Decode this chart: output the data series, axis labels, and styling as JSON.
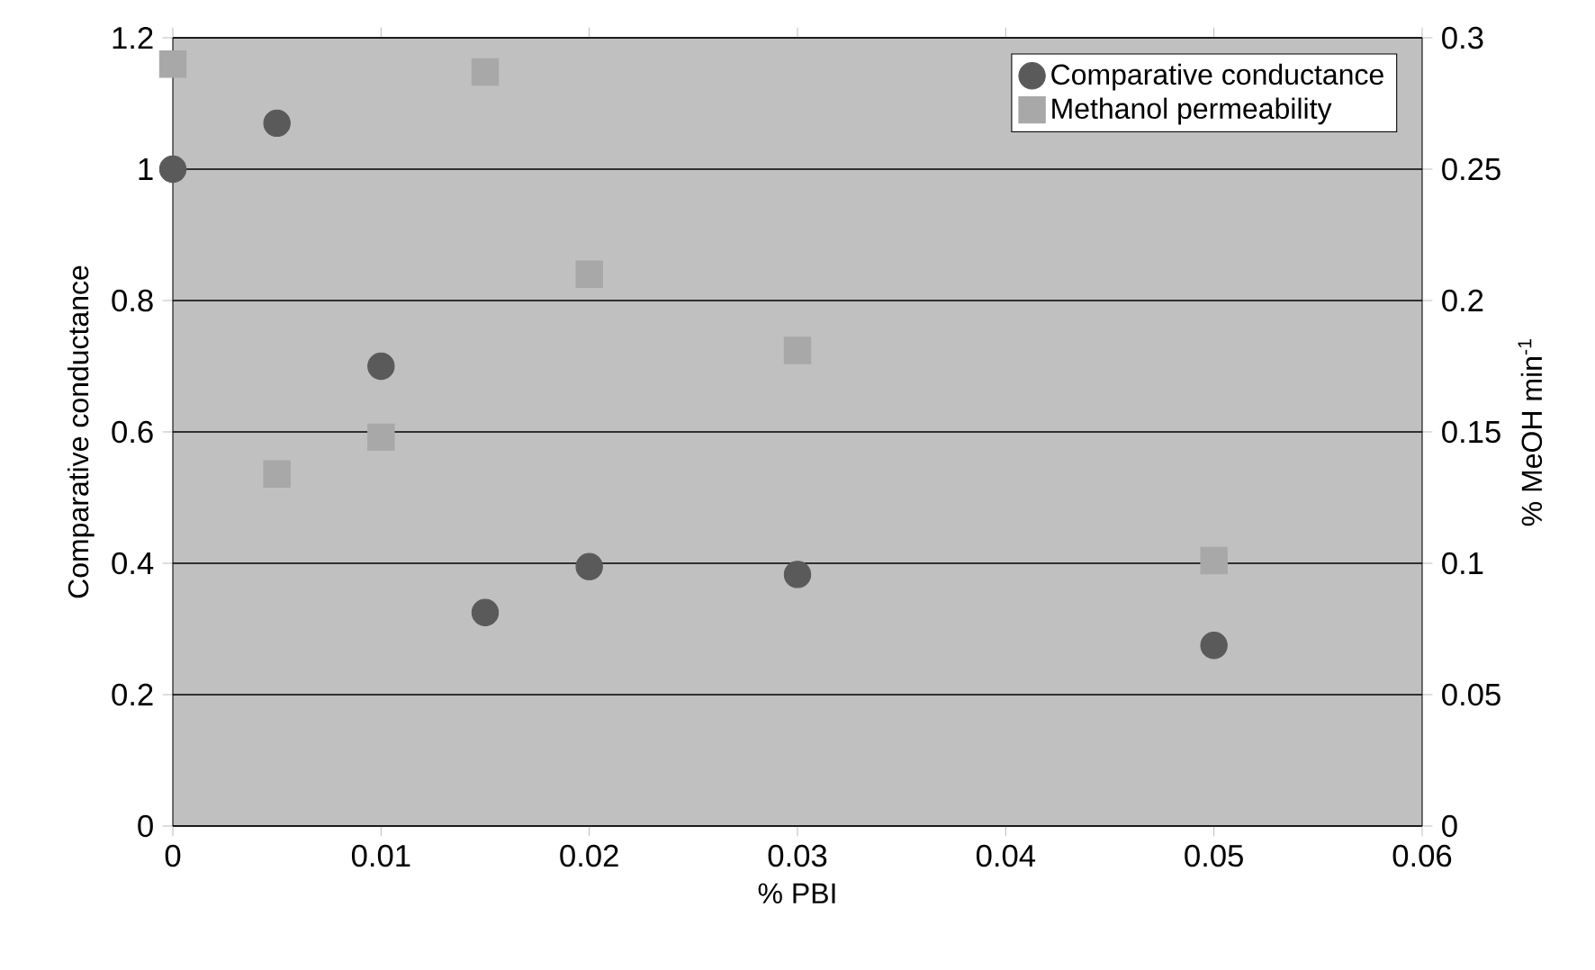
{
  "chart_data": {
    "type": "scatter",
    "xlabel": "% PBI",
    "ylabel": "Comparative conductance",
    "y2label": "% MeOH min$^{-1}$",
    "xlim": [
      0,
      0.06
    ],
    "xticks": [
      0,
      0.01,
      0.02,
      0.03,
      0.04,
      0.05,
      0.06
    ],
    "ylim": [
      0,
      1.2
    ],
    "yticks": [
      0,
      0.2,
      0.4,
      0.6,
      0.8,
      1,
      1.2
    ],
    "y2lim": [
      0,
      0.3
    ],
    "y2ticks": [
      0,
      0.05,
      0.1,
      0.15,
      0.2,
      0.25,
      0.3
    ],
    "grid": "y",
    "legend": "top right",
    "series": [
      {
        "name": "Comparative conductance",
        "color": "#5a5a5a",
        "marker": "circle",
        "x": [
          0,
          0.005,
          0.01,
          0.015,
          0.02,
          0.03,
          0.05
        ],
        "values": [
          1.0,
          1.07,
          0.7,
          0.325,
          0.395,
          0.383,
          0.275
        ]
      },
      {
        "name": "Methanol permeability",
        "color": "#a8a8a8",
        "marker": "square",
        "axis": "y2",
        "x": [
          0,
          0.005,
          0.01,
          0.015,
          0.02,
          0.03,
          0.05
        ],
        "values": [
          0.29,
          0.134,
          0.148,
          0.287,
          0.21,
          0.181,
          0.101
        ]
      }
    ]
  }
}
